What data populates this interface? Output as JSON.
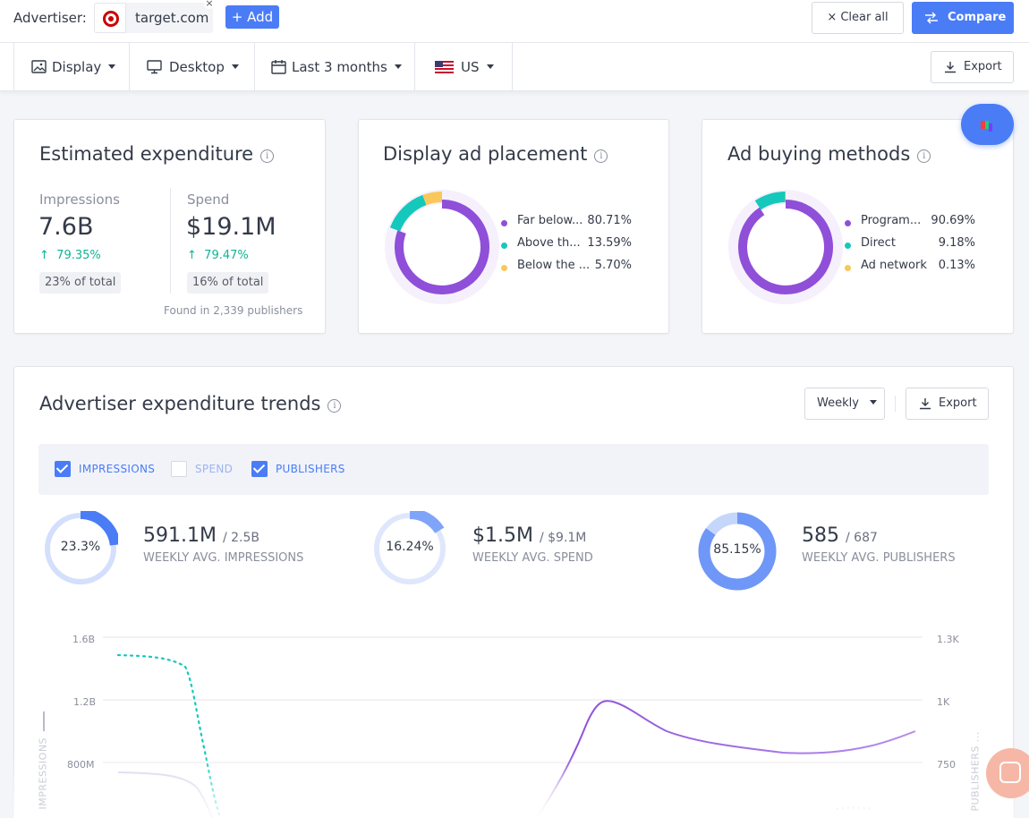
{
  "header": {
    "advertiser_label": "Advertiser:",
    "advertiser_domain": "target.com",
    "remove_symbol": "×",
    "add_label": "+ Add",
    "clear_all_label": "× Clear all",
    "compare_label": "Compare"
  },
  "filters": {
    "ad_type": "Display",
    "device": "Desktop",
    "period": "Last 3 months",
    "country": "US",
    "export_label": "Export"
  },
  "estimated_expenditure": {
    "title": "Estimated expenditure",
    "impressions_label": "Impressions",
    "impressions_value": "7.6B",
    "impressions_change": "79.35%",
    "impressions_share": "23% of total",
    "spend_label": "Spend",
    "spend_value": "$19.1M",
    "spend_change": "79.47%",
    "spend_share": "16% of total",
    "found_text": "Found in 2,339 publishers"
  },
  "display_ad_placement": {
    "title": "Display ad placement",
    "items": [
      {
        "label": "Far below...",
        "value": "80.71%",
        "pct": 80.71,
        "color": "#8f4fd9"
      },
      {
        "label": "Above th...",
        "value": "13.59%",
        "pct": 13.59,
        "color": "#14c8bc"
      },
      {
        "label": "Below the ...",
        "value": "5.70%",
        "pct": 5.7,
        "color": "#f8c85a"
      }
    ]
  },
  "ad_buying_methods": {
    "title": "Ad buying methods",
    "items": [
      {
        "label": "Program...",
        "value": "90.69%",
        "pct": 90.69,
        "color": "#8f4fd9"
      },
      {
        "label": "Direct",
        "value": "9.18%",
        "pct": 9.18,
        "color": "#14c8bc"
      },
      {
        "label": "Ad network",
        "value": "0.13%",
        "pct": 0.13,
        "color": "#f8c85a"
      }
    ]
  },
  "trends": {
    "title": "Advertiser expenditure trends",
    "granularity": "Weekly",
    "export_label": "Export",
    "toggles": [
      {
        "label": "IMPRESSIONS",
        "checked": true
      },
      {
        "label": "SPEND",
        "checked": false
      },
      {
        "label": "PUBLISHERS",
        "checked": true
      }
    ],
    "kpis": [
      {
        "pct_label": "23.3%",
        "pct": 23.3,
        "main": "591.1M",
        "sub": "/ 2.5B",
        "caption": "WEEKLY AVG. IMPRESSIONS",
        "color": "#4a7cf6",
        "track": "#d3dffc"
      },
      {
        "pct_label": "16.24%",
        "pct": 16.24,
        "main": "$1.5M",
        "sub": "/ $9.1M",
        "caption": "WEEKLY AVG. SPEND",
        "color": "#7fa4f8",
        "track": "#dfe7fc"
      },
      {
        "pct_label": "85.15%",
        "pct": 85.15,
        "main": "585",
        "sub": "/ 687",
        "caption": "WEEKLY AVG. PUBLISHERS",
        "color": "#6f97f7",
        "track": "#c5d6fb"
      }
    ]
  },
  "chart_data": {
    "type": "line",
    "y_left_label": "IMPRESSIONS",
    "y_right_label": "PUBLISHERS ...",
    "y_left_ticks": [
      "1.6B",
      "1.2B",
      "800M"
    ],
    "y_right_ticks": [
      "1.3K",
      "1K",
      "750"
    ],
    "series": [
      {
        "name": "IMPRESSIONS",
        "style": "dotted",
        "color": "#14c8bc"
      },
      {
        "name": "PUBLISHERS",
        "style": "solid",
        "color": "#8f4fd9"
      }
    ]
  }
}
